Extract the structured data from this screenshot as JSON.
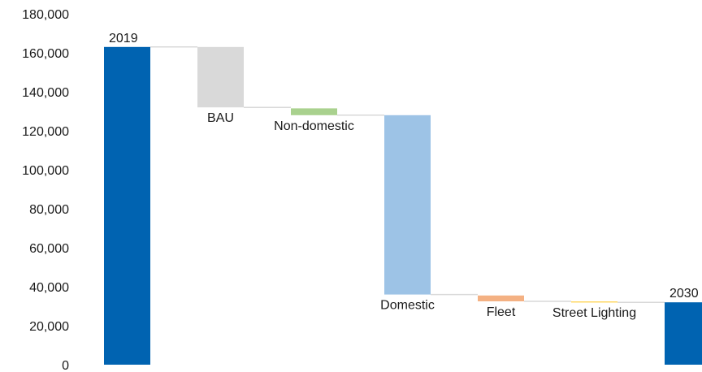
{
  "chart_data": {
    "type": "bar",
    "subtype": "waterfall",
    "title": "",
    "xlabel": "",
    "ylabel": "",
    "ylim": [
      0,
      180000
    ],
    "y_ticks": [
      0,
      20000,
      40000,
      60000,
      80000,
      100000,
      120000,
      140000,
      160000,
      180000
    ],
    "y_tick_labels": [
      "0",
      "20,000",
      "40,000",
      "60,000",
      "80,000",
      "100,000",
      "120,000",
      "140,000",
      "160,000",
      "180,000"
    ],
    "grid": false,
    "legend": "none",
    "connector_color": "#d9d9d9",
    "bars": [
      {
        "label": "2019",
        "kind": "total",
        "start": 0,
        "end": 163000,
        "color": "#0063b1",
        "label_position": "above"
      },
      {
        "label": "BAU",
        "kind": "decrease",
        "start": 163000,
        "end": 132000,
        "color": "#d9d9d9",
        "label_position": "below"
      },
      {
        "label": "Non-domestic",
        "kind": "decrease",
        "start": 131500,
        "end": 128000,
        "color": "#a9d18e",
        "label_position": "below"
      },
      {
        "label": "Domestic",
        "kind": "decrease",
        "start": 128000,
        "end": 36000,
        "color": "#9dc3e6",
        "label_position": "below"
      },
      {
        "label": "Fleet",
        "kind": "decrease",
        "start": 35500,
        "end": 32500,
        "color": "#f4b183",
        "label_position": "below"
      },
      {
        "label": "Street Lighting",
        "kind": "decrease",
        "start": 32500,
        "end": 32000,
        "color": "#ffd966",
        "label_position": "below"
      },
      {
        "label": "2030",
        "kind": "total",
        "start": 0,
        "end": 32000,
        "color": "#0063b1",
        "label_position": "above"
      }
    ]
  }
}
